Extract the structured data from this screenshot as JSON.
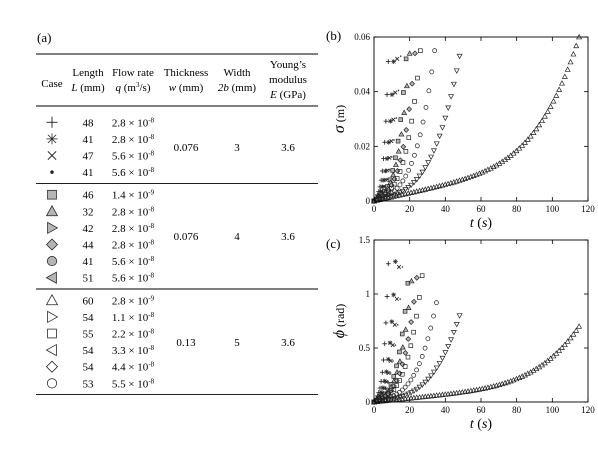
{
  "panel_labels": {
    "a": "(a)",
    "b": "(b)",
    "c": "(c)"
  },
  "table": {
    "headers": {
      "case": "Case",
      "length": [
        "Length",
        "L",
        " (mm)"
      ],
      "flow": [
        "Flow rate",
        "q",
        " (m",
        "3",
        "/s)"
      ],
      "thickness": [
        "Thickness",
        "w",
        " (mm)"
      ],
      "width": [
        "Width",
        "2b",
        " (mm)"
      ],
      "modulus": [
        "Young’s",
        "modulus",
        "E",
        " (GPa)"
      ]
    },
    "groups": [
      {
        "thickness": "0.076",
        "width": "3",
        "modulus": "3.6",
        "rows": [
          {
            "symbol": "plus",
            "length": "48",
            "flow": "2.8 × 10",
            "exp": "-8"
          },
          {
            "symbol": "asterisk",
            "length": "41",
            "flow": "2.8 × 10",
            "exp": "-8"
          },
          {
            "symbol": "cross",
            "length": "47",
            "flow": "5.6 × 10",
            "exp": "-8"
          },
          {
            "symbol": "dot",
            "length": "41",
            "flow": "5.6 × 10",
            "exp": "-8"
          }
        ]
      },
      {
        "thickness": "0.076",
        "width": "4",
        "modulus": "3.6",
        "rows": [
          {
            "symbol": "square-filled",
            "length": "46",
            "flow": "1.4 × 10",
            "exp": "-9"
          },
          {
            "symbol": "triangle-up-filled",
            "length": "32",
            "flow": "2.8 × 10",
            "exp": "-8"
          },
          {
            "symbol": "triangle-right-filled",
            "length": "42",
            "flow": "2.8 × 10",
            "exp": "-8"
          },
          {
            "symbol": "diamond-filled",
            "length": "44",
            "flow": "2.8 × 10",
            "exp": "-8"
          },
          {
            "symbol": "circle-filled",
            "length": "41",
            "flow": "5.6 × 10",
            "exp": "-8"
          },
          {
            "symbol": "triangle-left-filled",
            "length": "51",
            "flow": "5.6 × 10",
            "exp": "-8"
          }
        ]
      },
      {
        "thickness": "0.13",
        "width": "5",
        "modulus": "3.6",
        "rows": [
          {
            "symbol": "triangle-up-open",
            "length": "60",
            "flow": "2.8 × 10",
            "exp": "-9"
          },
          {
            "symbol": "triangle-right-open",
            "length": "54",
            "flow": "1.1 × 10",
            "exp": "-8"
          },
          {
            "symbol": "square-open",
            "length": "55",
            "flow": "2.2 × 10",
            "exp": "-8"
          },
          {
            "symbol": "triangle-left-open",
            "length": "54",
            "flow": "3.3 × 10",
            "exp": "-8"
          },
          {
            "symbol": "diamond-open",
            "length": "54",
            "flow": "4.4 × 10",
            "exp": "-8"
          },
          {
            "symbol": "circle-open",
            "length": "53",
            "flow": "5.5 × 10",
            "exp": "-8"
          }
        ]
      }
    ]
  },
  "chart_data": [
    {
      "type": "scatter",
      "panel": "(b)",
      "ylabel": "σ (m)",
      "xlabel": "t (s)",
      "xlim": [
        0,
        120
      ],
      "ylim": [
        0,
        0.06
      ],
      "xticks": [
        "0",
        "20",
        "40",
        "60",
        "80",
        "100",
        "120"
      ],
      "yticks": [
        "0",
        "0.02",
        "0.04",
        "0.06"
      ],
      "series": [
        {
          "marker": "plus",
          "tmax": 8,
          "ymax": 0.051
        },
        {
          "marker": "asterisk",
          "tmax": 11,
          "ymax": 0.051
        },
        {
          "marker": "cross",
          "tmax": 13,
          "ymax": 0.052
        },
        {
          "marker": "dot",
          "tmax": 15,
          "ymax": 0.053
        },
        {
          "marker": "square-filled",
          "tmax": 18,
          "ymax": 0.052
        },
        {
          "marker": "triangle-up-filled",
          "tmax": 20,
          "ymax": 0.054
        },
        {
          "marker": "diamond-filled",
          "tmax": 23,
          "ymax": 0.054
        },
        {
          "marker": "square-open",
          "tmax": 26,
          "ymax": 0.055
        },
        {
          "marker": "circle-open",
          "tmax": 34,
          "ymax": 0.055
        },
        {
          "marker": "triangle-down-open",
          "tmax": 48,
          "ymax": 0.053
        },
        {
          "marker": "triangle-up-open",
          "tmax": 115,
          "ymax": 0.06
        }
      ]
    },
    {
      "type": "scatter",
      "panel": "(c)",
      "ylabel": "ϕ (rad)",
      "xlabel": "t (s)",
      "xlim": [
        0,
        120
      ],
      "ylim": [
        0,
        1.5
      ],
      "xticks": [
        "0",
        "20",
        "40",
        "60",
        "80",
        "100",
        "120"
      ],
      "yticks": [
        "0",
        "0.5",
        "1",
        "1.5"
      ],
      "series": [
        {
          "marker": "plus",
          "tmax": 8,
          "ymax": 1.28
        },
        {
          "marker": "asterisk",
          "tmax": 12,
          "ymax": 1.3
        },
        {
          "marker": "cross",
          "tmax": 14,
          "ymax": 1.25
        },
        {
          "marker": "dot",
          "tmax": 16,
          "ymax": 1.25
        },
        {
          "marker": "square-filled",
          "tmax": 19,
          "ymax": 1.1
        },
        {
          "marker": "triangle-up-filled",
          "tmax": 21,
          "ymax": 1.12
        },
        {
          "marker": "diamond-filled",
          "tmax": 24,
          "ymax": 1.15
        },
        {
          "marker": "square-open",
          "tmax": 27,
          "ymax": 1.17
        },
        {
          "marker": "circle-open",
          "tmax": 35,
          "ymax": 0.92
        },
        {
          "marker": "triangle-down-open",
          "tmax": 48,
          "ymax": 0.8
        },
        {
          "marker": "triangle-up-open",
          "tmax": 115,
          "ymax": 0.7
        }
      ]
    }
  ]
}
